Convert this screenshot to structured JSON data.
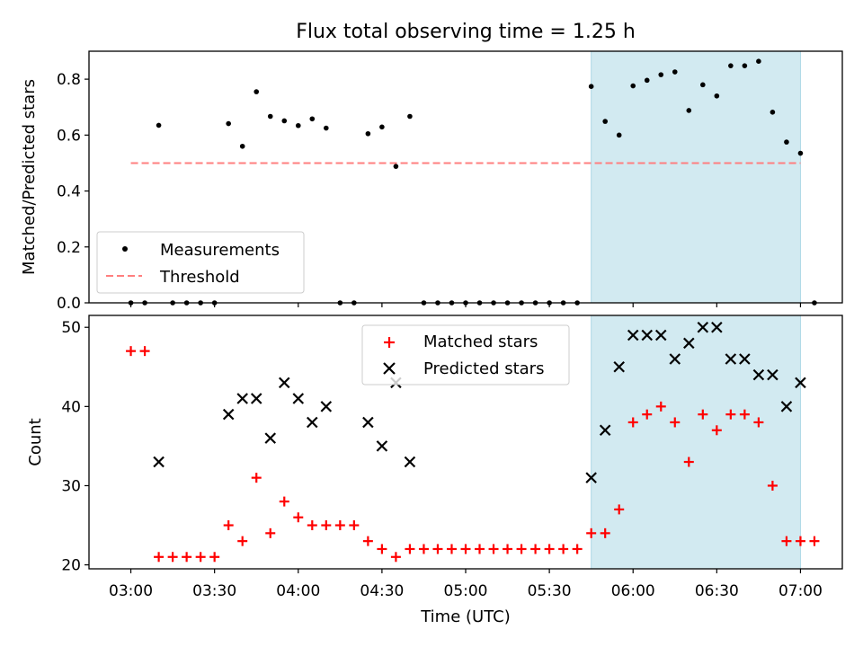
{
  "figure": {
    "title": "Flux total observing time = 1.25 h"
  },
  "chart_data": [
    {
      "type": "scatter",
      "panel": "top",
      "ylabel": "Matched/Predicted stars",
      "xlabel": "",
      "ylim": [
        0,
        0.9
      ],
      "xlim": [
        "02:45",
        "07:15"
      ],
      "yticks": [
        0.0,
        0.2,
        0.4,
        0.6,
        0.8
      ],
      "ytick_labels": [
        "0.0",
        "0.2",
        "0.4",
        "0.6",
        "0.8"
      ],
      "grid": false,
      "legend_position": "lower-left",
      "highlight_span": {
        "start": "05:45",
        "end": "07:00",
        "color": "#add8e6"
      },
      "threshold": {
        "name": "Threshold",
        "value": 0.5,
        "start": "03:00",
        "end": "07:00",
        "color": "#ff7f7f"
      },
      "series": [
        {
          "name": "Measurements",
          "color": "#000000",
          "x": [
            "03:00",
            "03:05",
            "03:10",
            "03:15",
            "03:20",
            "03:25",
            "03:30",
            "03:35",
            "03:40",
            "03:45",
            "03:50",
            "03:55",
            "04:00",
            "04:05",
            "04:10",
            "04:15",
            "04:20",
            "04:25",
            "04:30",
            "04:35",
            "04:40",
            "04:45",
            "04:50",
            "04:55",
            "05:00",
            "05:05",
            "05:10",
            "05:15",
            "05:20",
            "05:25",
            "05:30",
            "05:35",
            "05:40",
            "05:45",
            "05:50",
            "05:55",
            "06:00",
            "06:05",
            "06:10",
            "06:15",
            "06:20",
            "06:25",
            "06:30",
            "06:35",
            "06:40",
            "06:45",
            "06:50",
            "06:55",
            "07:00",
            "07:05"
          ],
          "y": [
            0.0,
            0.0,
            0.635,
            0.0,
            0.0,
            0.0,
            0.0,
            0.641,
            0.56,
            0.755,
            0.667,
            0.651,
            0.634,
            0.658,
            0.625,
            0.0,
            0.0,
            0.605,
            0.629,
            0.488,
            0.667,
            0.0,
            0.0,
            0.0,
            0.0,
            0.0,
            0.0,
            0.0,
            0.0,
            0.0,
            0.0,
            0.0,
            0.0,
            0.774,
            0.649,
            0.6,
            0.776,
            0.796,
            0.816,
            0.826,
            0.688,
            0.78,
            0.74,
            0.848,
            0.848,
            0.864,
            0.682,
            0.575,
            0.535,
            0.0
          ]
        }
      ]
    },
    {
      "type": "scatter",
      "panel": "bottom",
      "ylabel": "Count",
      "xlabel": "Time (UTC)",
      "ylim": [
        19.5,
        51.5
      ],
      "xlim": [
        "02:45",
        "07:15"
      ],
      "yticks": [
        20,
        30,
        40,
        50
      ],
      "ytick_labels": [
        "20",
        "30",
        "40",
        "50"
      ],
      "xticks": [
        "03:00",
        "03:30",
        "04:00",
        "04:30",
        "05:00",
        "05:30",
        "06:00",
        "06:30",
        "07:00"
      ],
      "xtick_labels": [
        "03:00",
        "03:30",
        "04:00",
        "04:30",
        "05:00",
        "05:30",
        "06:00",
        "06:30",
        "07:00"
      ],
      "grid": false,
      "legend_position": "top-center",
      "highlight_span": {
        "start": "05:45",
        "end": "07:00",
        "color": "#add8e6"
      },
      "series": [
        {
          "name": "Matched stars",
          "marker": "plus",
          "color": "#ff0000",
          "x": [
            "03:00",
            "03:05",
            "03:10",
            "03:15",
            "03:20",
            "03:25",
            "03:30",
            "03:35",
            "03:40",
            "03:45",
            "03:50",
            "03:55",
            "04:00",
            "04:05",
            "04:10",
            "04:15",
            "04:20",
            "04:25",
            "04:30",
            "04:35",
            "04:40",
            "04:45",
            "04:50",
            "04:55",
            "05:00",
            "05:05",
            "05:10",
            "05:15",
            "05:20",
            "05:25",
            "05:30",
            "05:35",
            "05:40",
            "05:45",
            "05:50",
            "05:55",
            "06:00",
            "06:05",
            "06:10",
            "06:15",
            "06:20",
            "06:25",
            "06:30",
            "06:35",
            "06:40",
            "06:45",
            "06:50",
            "06:55",
            "07:00",
            "07:05"
          ],
          "y": [
            47,
            47,
            21,
            21,
            21,
            21,
            21,
            25,
            23,
            31,
            24,
            28,
            26,
            25,
            25,
            25,
            25,
            23,
            22,
            21,
            22,
            22,
            22,
            22,
            22,
            22,
            22,
            22,
            22,
            22,
            22,
            22,
            22,
            24,
            24,
            27,
            38,
            39,
            40,
            38,
            33,
            39,
            37,
            39,
            39,
            38,
            30,
            23,
            23,
            23
          ]
        },
        {
          "name": "Predicted stars",
          "marker": "x",
          "color": "#000000",
          "x": [
            "03:10",
            "03:35",
            "03:40",
            "03:45",
            "03:50",
            "03:55",
            "04:00",
            "04:05",
            "04:10",
            "04:25",
            "04:30",
            "04:35",
            "04:40",
            "05:45",
            "05:50",
            "05:55",
            "06:00",
            "06:05",
            "06:10",
            "06:15",
            "06:20",
            "06:25",
            "06:30",
            "06:35",
            "06:40",
            "06:45",
            "06:50",
            "06:55",
            "07:00"
          ],
          "y": [
            33,
            39,
            41,
            41,
            36,
            43,
            41,
            38,
            40,
            38,
            35,
            43,
            33,
            31,
            37,
            45,
            49,
            49,
            49,
            46,
            48,
            50,
            50,
            46,
            46,
            44,
            44,
            40,
            43
          ]
        }
      ]
    }
  ]
}
